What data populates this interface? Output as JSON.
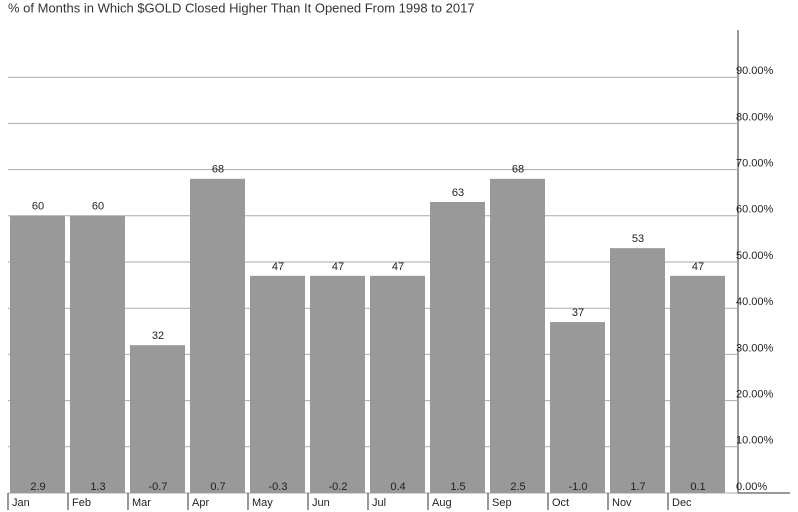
{
  "chart_data": {
    "type": "bar",
    "title": "% of Months in Which $GOLD Closed Higher Than It Opened From 1998 to 2017",
    "categories": [
      "Jan",
      "Feb",
      "Mar",
      "Apr",
      "May",
      "Jun",
      "Jul",
      "Aug",
      "Sep",
      "Oct",
      "Nov",
      "Dec"
    ],
    "values": [
      60,
      60,
      32,
      68,
      47,
      47,
      47,
      63,
      68,
      37,
      53,
      47
    ],
    "bottom_labels": [
      "2.9",
      "1.3",
      "-0.7",
      "0.7",
      "-0.3",
      "-0.2",
      "0.4",
      "1.5",
      "2.5",
      "-1.0",
      "1.7",
      "0.1"
    ],
    "color": "#999999",
    "ylim": [
      0,
      100
    ],
    "yticks": [
      {
        "value": 0,
        "label": "0.00%"
      },
      {
        "value": 10,
        "label": "10.00%"
      },
      {
        "value": 20,
        "label": "20.00%"
      },
      {
        "value": 30,
        "label": "30.00%"
      },
      {
        "value": 40,
        "label": "40.00%"
      },
      {
        "value": 50,
        "label": "50.00%"
      },
      {
        "value": 60,
        "label": "60.00%"
      },
      {
        "value": 70,
        "label": "70.00%"
      },
      {
        "value": 80,
        "label": "80.00%"
      },
      {
        "value": 90,
        "label": "90.00%"
      }
    ],
    "grid": true
  }
}
